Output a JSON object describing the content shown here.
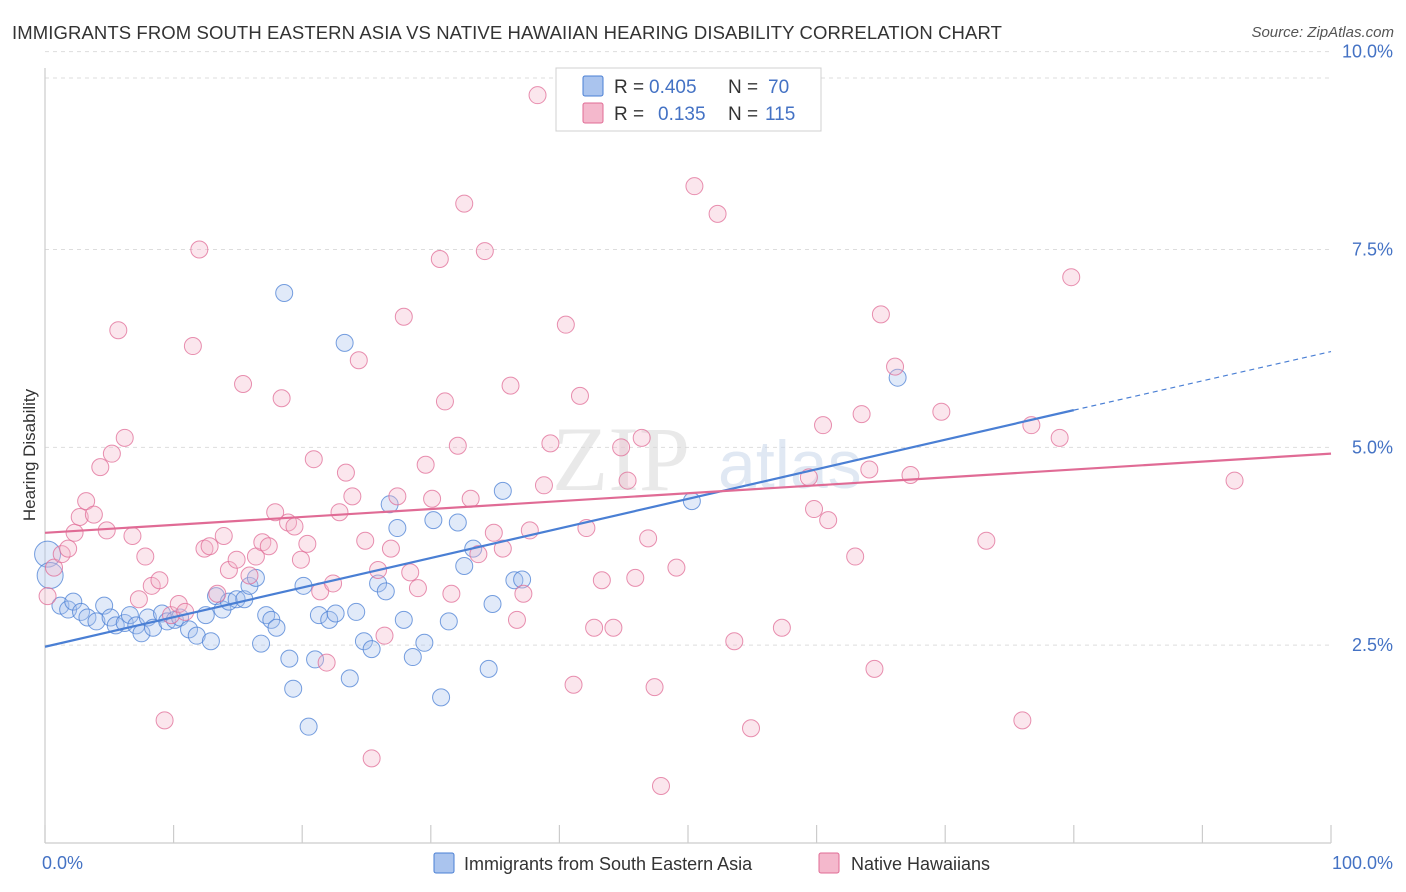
{
  "title": "IMMIGRANTS FROM SOUTH EASTERN ASIA VS NATIVE HAWAIIAN HEARING DISABILITY CORRELATION CHART",
  "source": "Source: ZipAtlas.com",
  "watermark": {
    "zip": "ZIP",
    "atlas": "atlas"
  },
  "chart_data": {
    "type": "scatter",
    "ylabel": "Hearing Disability",
    "xlabel": "",
    "xlim": [
      0,
      100
    ],
    "ylim": [
      0,
      10.4
    ],
    "x_tick_labels": [
      "0.0%",
      "100.0%"
    ],
    "y_ticks": [
      2.5,
      5.0,
      7.5,
      10.0
    ],
    "y_tick_labels": [
      "2.5%",
      "5.0%",
      "7.5%",
      "10.0%"
    ],
    "legend": [
      {
        "name": "Immigrants from South Eastern Asia",
        "r_label": "R =",
        "r": "0.405",
        "n_label": "N =",
        "n": "70",
        "color": "#4a7fd4",
        "fill": "#aac4ee"
      },
      {
        "name": "Native Hawaiians",
        "r_label": "R =",
        "r": "0.135",
        "n_label": "N =",
        "n": "115",
        "color": "#e06b95",
        "fill": "#f4b8cc"
      }
    ],
    "series": [
      {
        "name": "Immigrants from South Eastern Asia",
        "color": "#4a7fd4",
        "trend": {
          "x0": 0,
          "y0": 2.48,
          "x1": 80,
          "y1": 5.47,
          "dash_to": 100,
          "dash_y": 6.21
        },
        "points": [
          [
            0.2,
            3.65
          ],
          [
            0.4,
            3.38
          ],
          [
            1.2,
            3.0
          ],
          [
            1.8,
            2.95
          ],
          [
            2.2,
            3.05
          ],
          [
            2.8,
            2.92
          ],
          [
            3.3,
            2.85
          ],
          [
            4.0,
            2.8
          ],
          [
            4.6,
            3.0
          ],
          [
            5.1,
            2.85
          ],
          [
            5.5,
            2.75
          ],
          [
            6.2,
            2.78
          ],
          [
            6.6,
            2.88
          ],
          [
            7.1,
            2.75
          ],
          [
            7.5,
            2.65
          ],
          [
            8.0,
            2.85
          ],
          [
            8.4,
            2.72
          ],
          [
            9.1,
            2.9
          ],
          [
            9.5,
            2.8
          ],
          [
            10.1,
            2.82
          ],
          [
            10.5,
            2.85
          ],
          [
            11.2,
            2.7
          ],
          [
            11.8,
            2.62
          ],
          [
            12.5,
            2.88
          ],
          [
            12.9,
            2.55
          ],
          [
            13.3,
            3.12
          ],
          [
            13.8,
            2.95
          ],
          [
            14.3,
            3.05
          ],
          [
            14.9,
            3.08
          ],
          [
            15.5,
            3.08
          ],
          [
            15.9,
            3.25
          ],
          [
            16.4,
            3.35
          ],
          [
            16.8,
            2.52
          ],
          [
            17.2,
            2.88
          ],
          [
            17.6,
            2.82
          ],
          [
            18.0,
            2.72
          ],
          [
            18.6,
            6.95
          ],
          [
            19.0,
            2.33
          ],
          [
            19.3,
            1.95
          ],
          [
            20.1,
            3.25
          ],
          [
            20.5,
            1.47
          ],
          [
            21.0,
            2.32
          ],
          [
            21.3,
            2.88
          ],
          [
            22.1,
            2.82
          ],
          [
            22.6,
            2.9
          ],
          [
            23.3,
            6.32
          ],
          [
            23.7,
            2.08
          ],
          [
            24.2,
            2.92
          ],
          [
            24.8,
            2.55
          ],
          [
            25.4,
            2.45
          ],
          [
            25.9,
            3.28
          ],
          [
            26.5,
            3.18
          ],
          [
            26.8,
            4.28
          ],
          [
            27.4,
            3.98
          ],
          [
            27.9,
            2.82
          ],
          [
            28.6,
            2.35
          ],
          [
            29.5,
            2.53
          ],
          [
            30.2,
            4.08
          ],
          [
            30.8,
            1.84
          ],
          [
            31.4,
            2.8
          ],
          [
            32.1,
            4.05
          ],
          [
            32.6,
            3.5
          ],
          [
            33.3,
            3.72
          ],
          [
            34.5,
            2.2
          ],
          [
            34.8,
            3.02
          ],
          [
            35.6,
            4.45
          ],
          [
            36.5,
            3.32
          ],
          [
            37.1,
            3.33
          ],
          [
            50.3,
            4.32
          ],
          [
            66.3,
            5.88
          ]
        ]
      },
      {
        "name": "Native Hawaiians",
        "color": "#e06b95",
        "trend": {
          "x0": 0,
          "y0": 3.92,
          "x1": 100,
          "y1": 4.92
        },
        "points": [
          [
            0.2,
            3.12
          ],
          [
            0.7,
            3.48
          ],
          [
            1.3,
            3.65
          ],
          [
            1.8,
            3.72
          ],
          [
            2.3,
            3.92
          ],
          [
            2.7,
            4.12
          ],
          [
            3.2,
            4.32
          ],
          [
            3.8,
            4.15
          ],
          [
            4.3,
            4.75
          ],
          [
            4.8,
            3.95
          ],
          [
            5.2,
            4.92
          ],
          [
            5.7,
            6.48
          ],
          [
            6.2,
            5.12
          ],
          [
            6.8,
            3.88
          ],
          [
            7.3,
            3.08
          ],
          [
            7.8,
            3.62
          ],
          [
            8.3,
            3.25
          ],
          [
            8.9,
            3.32
          ],
          [
            9.3,
            1.55
          ],
          [
            9.8,
            2.88
          ],
          [
            10.4,
            3.02
          ],
          [
            10.9,
            2.92
          ],
          [
            11.5,
            6.28
          ],
          [
            12.0,
            7.5
          ],
          [
            12.4,
            3.72
          ],
          [
            12.8,
            3.75
          ],
          [
            13.4,
            3.15
          ],
          [
            13.9,
            3.88
          ],
          [
            14.3,
            3.45
          ],
          [
            14.9,
            3.58
          ],
          [
            15.4,
            5.8
          ],
          [
            15.9,
            3.38
          ],
          [
            16.4,
            3.62
          ],
          [
            16.9,
            3.8
          ],
          [
            17.4,
            3.75
          ],
          [
            17.9,
            4.18
          ],
          [
            18.4,
            5.62
          ],
          [
            18.9,
            4.05
          ],
          [
            19.4,
            4.0
          ],
          [
            19.9,
            3.58
          ],
          [
            20.4,
            3.78
          ],
          [
            20.9,
            4.85
          ],
          [
            21.4,
            3.18
          ],
          [
            21.9,
            2.28
          ],
          [
            22.4,
            3.28
          ],
          [
            22.9,
            4.18
          ],
          [
            23.4,
            4.68
          ],
          [
            23.9,
            4.38
          ],
          [
            24.4,
            6.1
          ],
          [
            24.9,
            3.82
          ],
          [
            25.4,
            1.07
          ],
          [
            25.9,
            3.45
          ],
          [
            26.4,
            2.62
          ],
          [
            26.9,
            3.72
          ],
          [
            27.4,
            4.38
          ],
          [
            27.9,
            6.65
          ],
          [
            28.4,
            3.42
          ],
          [
            29.0,
            3.22
          ],
          [
            29.6,
            4.78
          ],
          [
            30.1,
            4.35
          ],
          [
            30.7,
            7.38
          ],
          [
            31.1,
            5.58
          ],
          [
            31.6,
            3.15
          ],
          [
            32.1,
            5.02
          ],
          [
            32.6,
            8.08
          ],
          [
            33.1,
            4.35
          ],
          [
            33.7,
            3.65
          ],
          [
            34.2,
            7.48
          ],
          [
            34.9,
            3.92
          ],
          [
            35.6,
            3.72
          ],
          [
            36.2,
            5.78
          ],
          [
            36.7,
            2.82
          ],
          [
            37.2,
            3.15
          ],
          [
            37.7,
            3.95
          ],
          [
            38.3,
            9.45
          ],
          [
            38.8,
            4.52
          ],
          [
            39.3,
            5.05
          ],
          [
            40.5,
            6.55
          ],
          [
            41.1,
            2.0
          ],
          [
            41.6,
            5.65
          ],
          [
            42.1,
            3.98
          ],
          [
            42.7,
            2.72
          ],
          [
            43.3,
            3.32
          ],
          [
            43.7,
            9.45
          ],
          [
            44.2,
            2.72
          ],
          [
            44.8,
            5.0
          ],
          [
            45.3,
            4.58
          ],
          [
            45.9,
            3.35
          ],
          [
            46.4,
            5.12
          ],
          [
            46.9,
            3.85
          ],
          [
            47.4,
            1.97
          ],
          [
            47.9,
            0.72
          ],
          [
            49.1,
            3.48
          ],
          [
            50.5,
            8.3
          ],
          [
            52.3,
            7.95
          ],
          [
            53.6,
            2.55
          ],
          [
            54.9,
            1.45
          ],
          [
            57.3,
            2.72
          ],
          [
            59.4,
            4.62
          ],
          [
            59.8,
            4.22
          ],
          [
            60.5,
            5.28
          ],
          [
            60.9,
            4.08
          ],
          [
            63.0,
            3.62
          ],
          [
            63.5,
            5.42
          ],
          [
            64.1,
            4.72
          ],
          [
            64.5,
            2.2
          ],
          [
            65.0,
            6.68
          ],
          [
            66.1,
            6.02
          ],
          [
            67.3,
            4.65
          ],
          [
            69.7,
            5.45
          ],
          [
            73.2,
            3.82
          ],
          [
            76.0,
            1.55
          ],
          [
            76.7,
            5.28
          ],
          [
            78.9,
            5.12
          ],
          [
            79.8,
            7.15
          ],
          [
            92.5,
            4.58
          ]
        ]
      }
    ]
  }
}
